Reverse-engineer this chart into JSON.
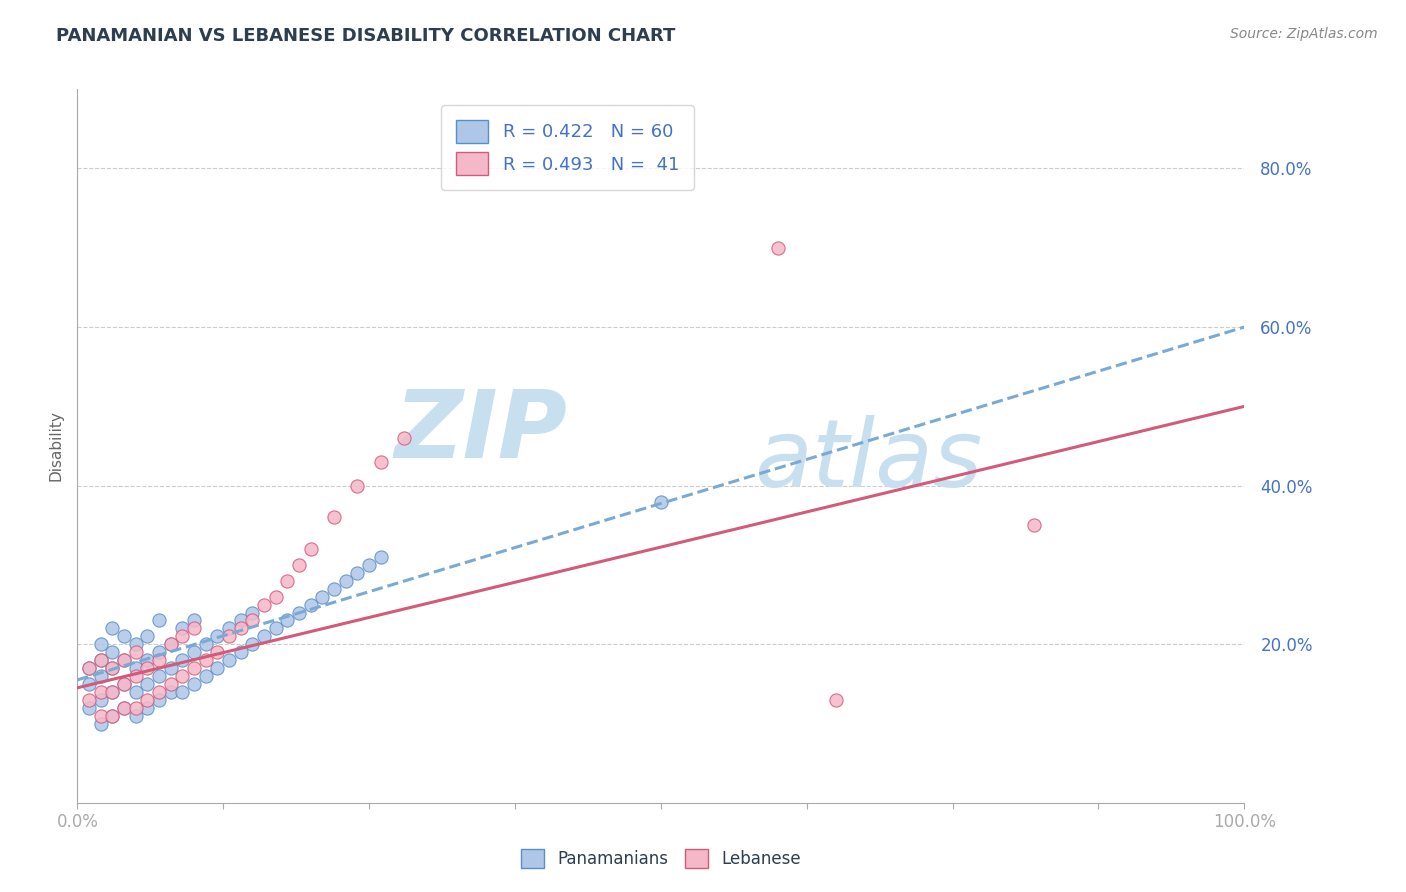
{
  "title": "PANAMANIAN VS LEBANESE DISABILITY CORRELATION CHART",
  "source": "Source: ZipAtlas.com",
  "ylabel": "Disability",
  "xlim": [
    0,
    1.0
  ],
  "ylim": [
    0,
    0.9
  ],
  "yticks": [
    0.2,
    0.4,
    0.6,
    0.8
  ],
  "ytick_labels": [
    "20.0%",
    "40.0%",
    "60.0%",
    "80.0%"
  ],
  "series": [
    {
      "name": "Panamanians",
      "R": 0.422,
      "N": 60,
      "color": "#aec6e8",
      "edge_color": "#5b8ec4",
      "trend_color": "#7aaad4",
      "trend_style": "--",
      "x": [
        0.01,
        0.01,
        0.01,
        0.02,
        0.02,
        0.02,
        0.02,
        0.02,
        0.03,
        0.03,
        0.03,
        0.03,
        0.03,
        0.04,
        0.04,
        0.04,
        0.04,
        0.05,
        0.05,
        0.05,
        0.05,
        0.06,
        0.06,
        0.06,
        0.06,
        0.07,
        0.07,
        0.07,
        0.07,
        0.08,
        0.08,
        0.08,
        0.09,
        0.09,
        0.09,
        0.1,
        0.1,
        0.1,
        0.11,
        0.11,
        0.12,
        0.12,
        0.13,
        0.13,
        0.14,
        0.14,
        0.15,
        0.15,
        0.16,
        0.17,
        0.18,
        0.19,
        0.2,
        0.21,
        0.22,
        0.23,
        0.24,
        0.25,
        0.26,
        0.5
      ],
      "y": [
        0.12,
        0.15,
        0.17,
        0.1,
        0.13,
        0.16,
        0.18,
        0.2,
        0.11,
        0.14,
        0.17,
        0.19,
        0.22,
        0.12,
        0.15,
        0.18,
        0.21,
        0.11,
        0.14,
        0.17,
        0.2,
        0.12,
        0.15,
        0.18,
        0.21,
        0.13,
        0.16,
        0.19,
        0.23,
        0.14,
        0.17,
        0.2,
        0.14,
        0.18,
        0.22,
        0.15,
        0.19,
        0.23,
        0.16,
        0.2,
        0.17,
        0.21,
        0.18,
        0.22,
        0.19,
        0.23,
        0.2,
        0.24,
        0.21,
        0.22,
        0.23,
        0.24,
        0.25,
        0.26,
        0.27,
        0.28,
        0.29,
        0.3,
        0.31,
        0.38
      ]
    },
    {
      "name": "Lebanese",
      "R": 0.493,
      "N": 41,
      "color": "#f5b8c8",
      "edge_color": "#d45a7a",
      "trend_color": "#d45a7a",
      "trend_style": "-",
      "x": [
        0.01,
        0.01,
        0.02,
        0.02,
        0.02,
        0.03,
        0.03,
        0.03,
        0.04,
        0.04,
        0.04,
        0.05,
        0.05,
        0.05,
        0.06,
        0.06,
        0.07,
        0.07,
        0.08,
        0.08,
        0.09,
        0.09,
        0.1,
        0.1,
        0.11,
        0.12,
        0.13,
        0.14,
        0.15,
        0.16,
        0.17,
        0.18,
        0.19,
        0.2,
        0.22,
        0.24,
        0.26,
        0.28,
        0.6,
        0.65,
        0.82
      ],
      "y": [
        0.13,
        0.17,
        0.11,
        0.14,
        0.18,
        0.11,
        0.14,
        0.17,
        0.12,
        0.15,
        0.18,
        0.12,
        0.16,
        0.19,
        0.13,
        0.17,
        0.14,
        0.18,
        0.15,
        0.2,
        0.16,
        0.21,
        0.17,
        0.22,
        0.18,
        0.19,
        0.21,
        0.22,
        0.23,
        0.25,
        0.26,
        0.28,
        0.3,
        0.32,
        0.36,
        0.4,
        0.43,
        0.46,
        0.7,
        0.13,
        0.35
      ]
    }
  ],
  "pan_trend": {
    "x_start": 0.0,
    "x_end": 1.0,
    "y_start": 0.155,
    "y_end": 0.6
  },
  "leb_trend": {
    "x_start": 0.0,
    "x_end": 1.0,
    "y_start": 0.145,
    "y_end": 0.5
  },
  "watermark_zip": "ZIP",
  "watermark_atlas": "atlas",
  "watermark_color": "#c8dff0",
  "title_color": "#2c3e50",
  "axis_label_color": "#4472c4",
  "bg_color": "#ffffff",
  "grid_color": "#cccccc",
  "legend_pan_label": "R = 0.422   N = 60",
  "legend_leb_label": "R = 0.493   N =  41",
  "bottom_label_pan": "Panamanians",
  "bottom_label_leb": "Lebanese"
}
